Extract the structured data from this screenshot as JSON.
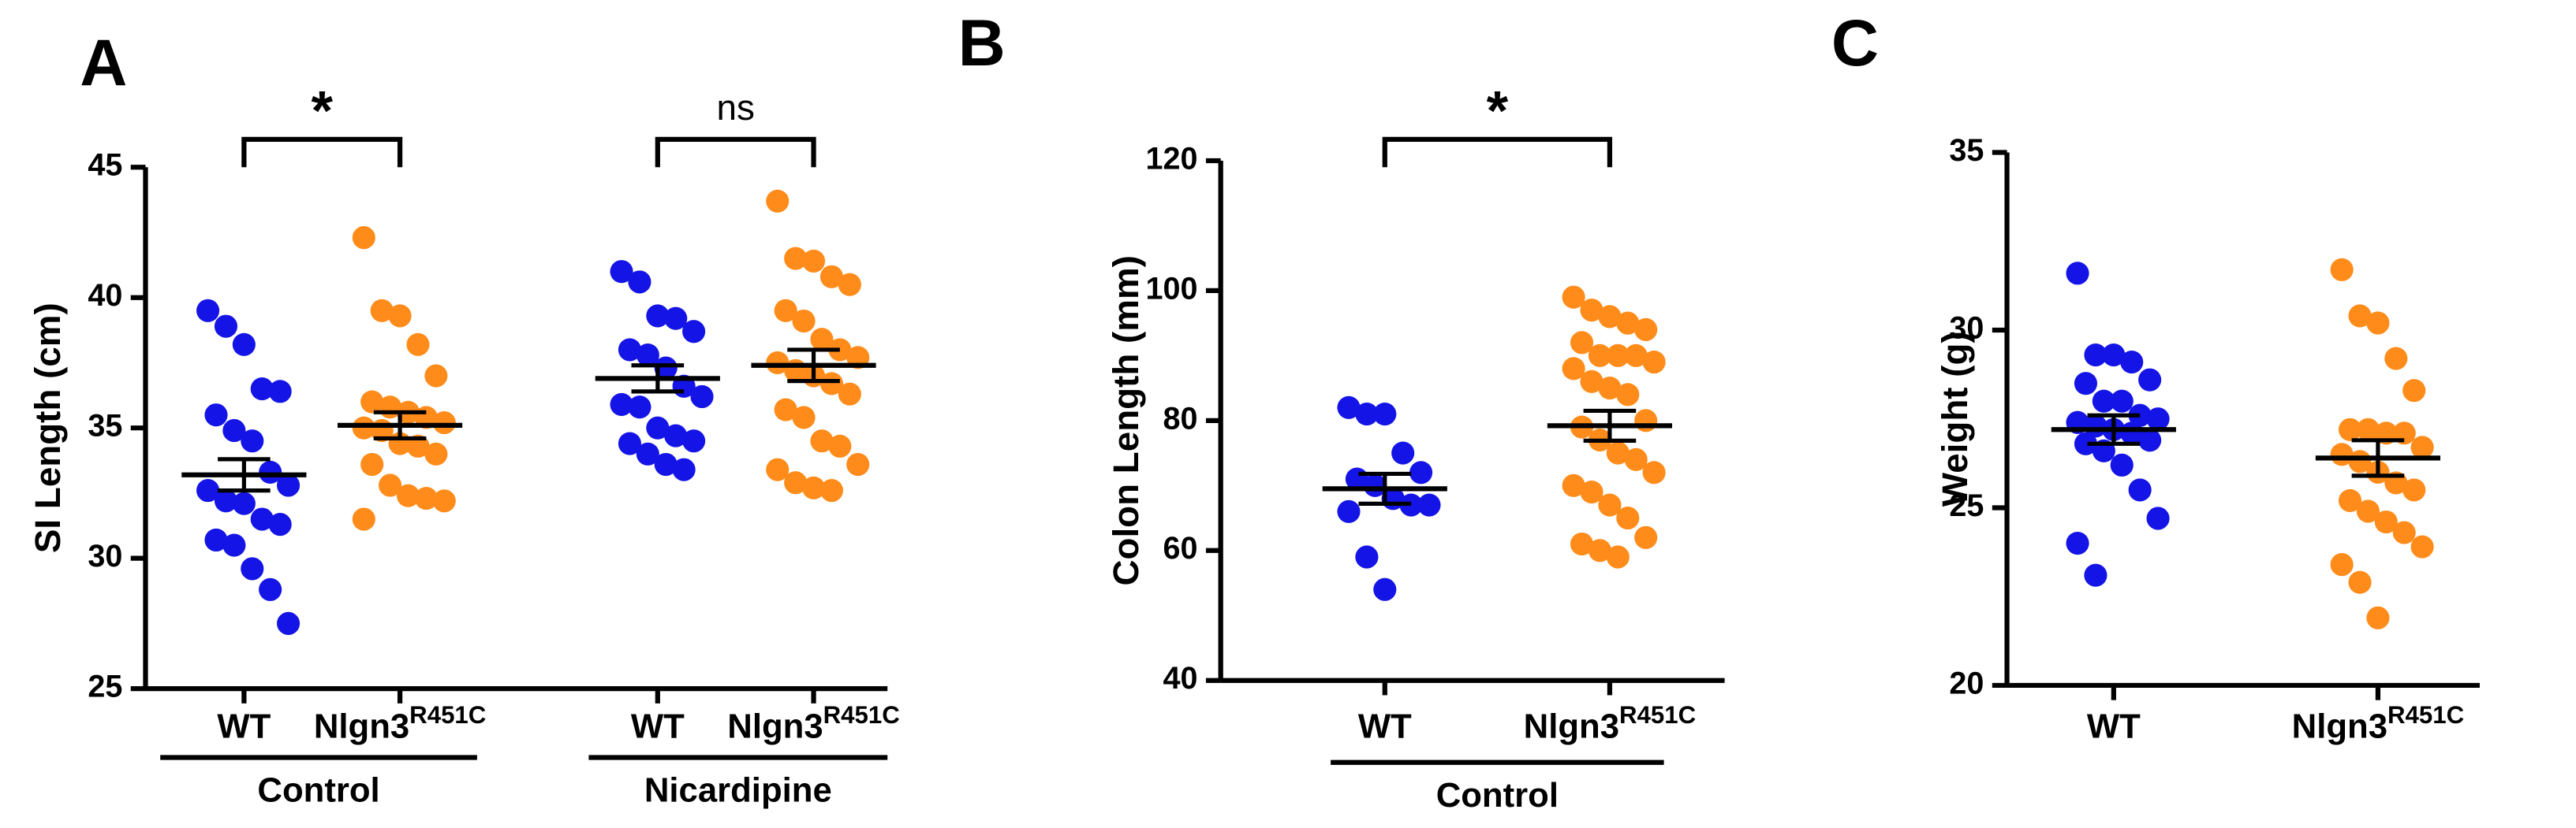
{
  "chart_data": [
    {
      "type": "dot_plot",
      "letter": "A",
      "ylabel": "SI Length (cm)",
      "categories": [
        "WT",
        "Nlgn3",
        "WT",
        "Nlgn3"
      ],
      "category_superscripts": [
        null,
        "R451C",
        null,
        "R451C"
      ],
      "colors": [
        "#1414e6",
        "#ff8c1a",
        "#1414e6",
        "#ff8c1a"
      ],
      "points": [
        [
          39.5,
          38.9,
          38.2,
          36.5,
          36.4,
          35.5,
          34.9,
          34.5,
          33.3,
          32.8,
          32.6,
          32.2,
          32.1,
          31.5,
          31.3,
          30.7,
          30.5,
          29.6,
          28.8,
          27.5
        ],
        [
          42.3,
          39.5,
          39.3,
          38.2,
          37.0,
          36.0,
          35.8,
          35.6,
          35.4,
          35.2,
          35.0,
          34.9,
          34.4,
          34.3,
          34.0,
          33.6,
          32.8,
          32.4,
          32.3,
          32.2,
          31.5
        ],
        [
          41.0,
          40.6,
          39.3,
          39.2,
          38.7,
          38.0,
          37.8,
          37.3,
          36.6,
          36.2,
          35.9,
          35.8,
          35.0,
          34.7,
          34.5,
          34.4,
          34.0,
          33.6,
          33.4
        ],
        [
          43.7,
          41.5,
          41.4,
          40.8,
          40.5,
          39.5,
          39.1,
          38.4,
          38.0,
          37.7,
          37.5,
          37.2,
          37.0,
          36.7,
          36.3,
          35.7,
          35.4,
          34.5,
          34.3,
          33.6,
          33.4,
          32.9,
          32.7,
          32.6
        ]
      ],
      "means": [
        33.2,
        35.1,
        36.9,
        37.4
      ],
      "sems": [
        0.6,
        0.5,
        0.5,
        0.6
      ],
      "ylim": [
        25,
        45
      ],
      "yticks": [
        25,
        30,
        35,
        40,
        45
      ],
      "groups": [
        "Control",
        "Nicardipine"
      ],
      "annotations": [
        "*",
        "ns"
      ]
    },
    {
      "type": "dot_plot",
      "letter": "B",
      "ylabel": "Colon Length (mm)",
      "categories": [
        "WT",
        "Nlgn3"
      ],
      "category_superscripts": [
        null,
        "R451C"
      ],
      "colors": [
        "#1414e6",
        "#ff8c1a"
      ],
      "points": [
        [
          82,
          81,
          81,
          75,
          72,
          71,
          70,
          68,
          67,
          67,
          66,
          59,
          54
        ],
        [
          99,
          97,
          96,
          95,
          94,
          92,
          90,
          90,
          90,
          89,
          88,
          86,
          85,
          84,
          80,
          79,
          77,
          75,
          74,
          72,
          70,
          69,
          67,
          65,
          62,
          61,
          60,
          59
        ]
      ],
      "means": [
        69.5,
        79.2
      ],
      "sems": [
        2.3,
        2.3
      ],
      "ylim": [
        40,
        120
      ],
      "yticks": [
        40,
        60,
        80,
        100,
        120
      ],
      "groups": [
        "Control"
      ],
      "annotations": [
        "*"
      ]
    },
    {
      "type": "dot_plot",
      "letter": "C",
      "ylabel": "Weight (g)",
      "categories": [
        "WT",
        "Nlgn3"
      ],
      "category_superscripts": [
        null,
        "R451C"
      ],
      "colors": [
        "#1414e6",
        "#ff8c1a"
      ],
      "points": [
        [
          31.6,
          29.3,
          29.3,
          29.1,
          28.6,
          28.5,
          28.0,
          28.0,
          27.6,
          27.5,
          27.4,
          27.3,
          27.2,
          27.1,
          26.9,
          26.8,
          26.6,
          26.2,
          25.5,
          24.7,
          24.0,
          23.1
        ],
        [
          31.7,
          30.4,
          30.2,
          29.2,
          28.3,
          27.2,
          27.2,
          27.1,
          27.1,
          26.7,
          26.5,
          26.3,
          26.0,
          25.7,
          25.5,
          25.2,
          24.9,
          24.6,
          24.3,
          23.9,
          23.4,
          22.9,
          21.9
        ]
      ],
      "means": [
        27.2,
        26.4
      ],
      "sems": [
        0.4,
        0.5
      ],
      "ylim": [
        20,
        35
      ],
      "yticks": [
        20,
        25,
        30,
        35
      ]
    }
  ]
}
